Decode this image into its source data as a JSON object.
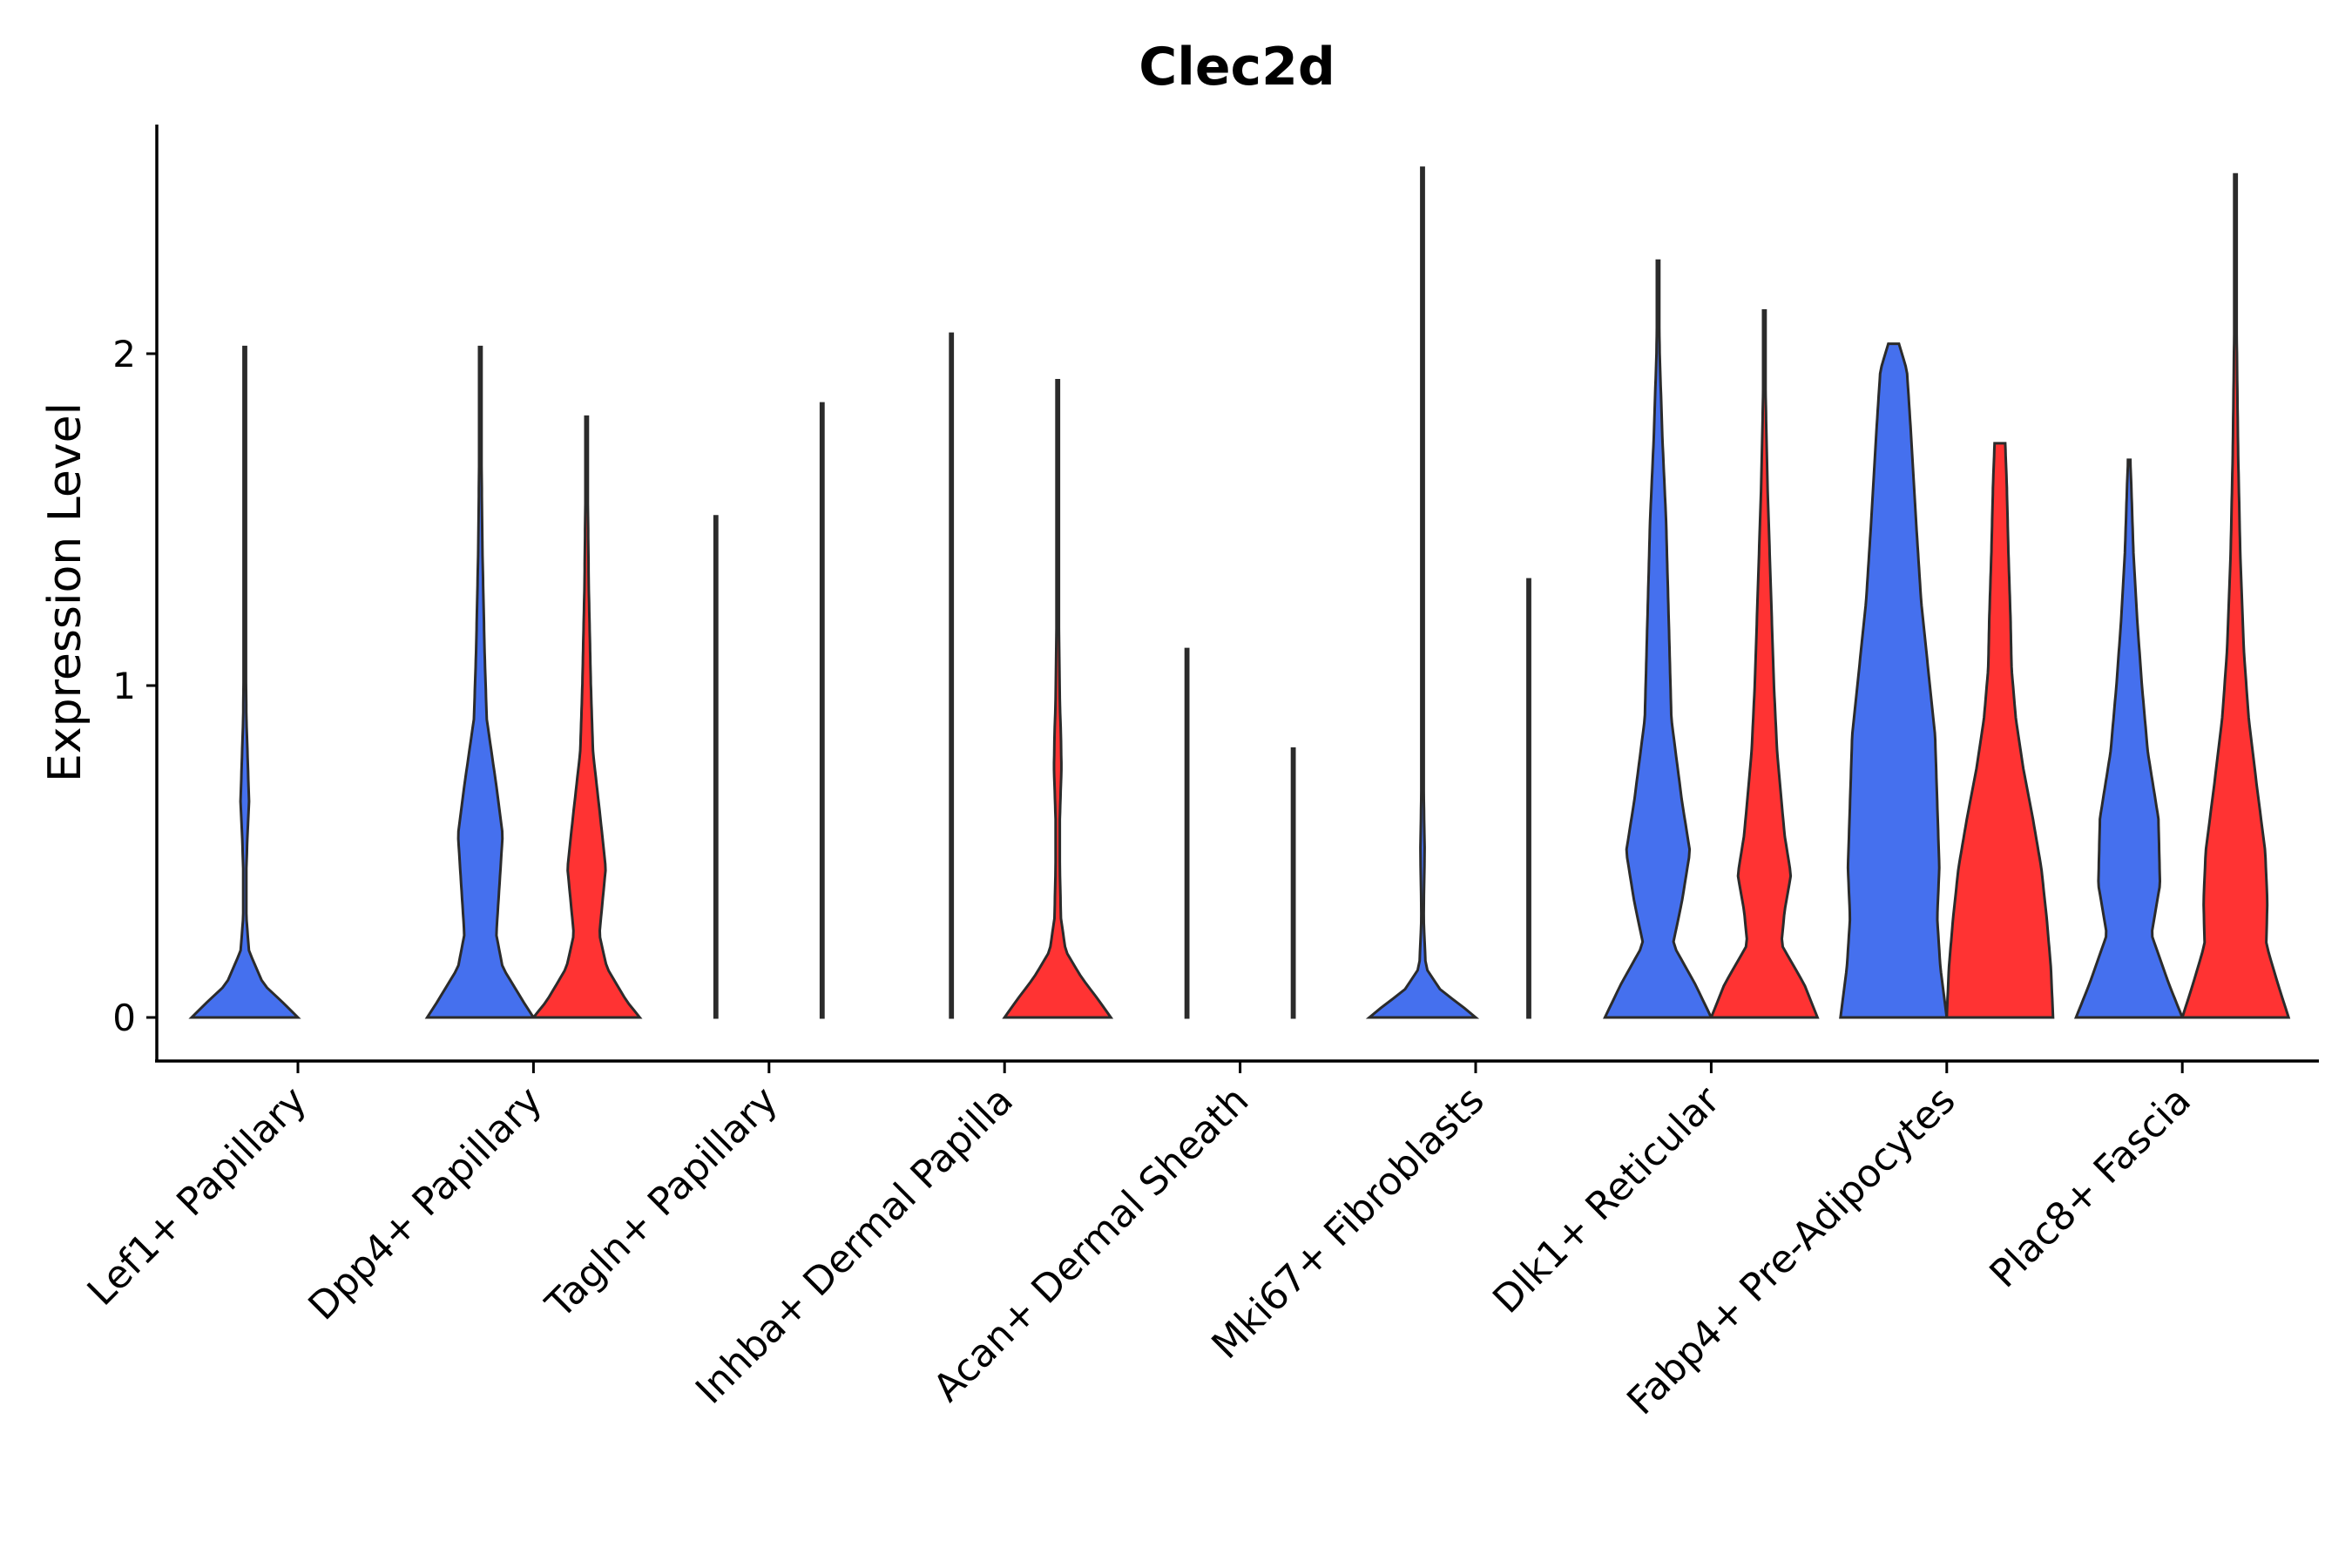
{
  "chart_data": {
    "type": "violin",
    "title": "Clec2d",
    "xlabel": "",
    "ylabel": "Expression Level",
    "ylim": [
      -0.13,
      2.7
    ],
    "yticks": [
      0,
      1,
      2
    ],
    "ytick_labels": [
      "0",
      "1",
      "2"
    ],
    "colors": {
      "blue": "#4570EE",
      "red": "#FF3333"
    },
    "categories": [
      "Lef1+ Papillary",
      "Dpp4+ Papillary",
      "Tagln+ Papillary",
      "Inhba+ Dermal Papilla",
      "Acan+ Dermal Sheath",
      "Mki67+ Fibroblasts",
      "Dlk1+ Reticular",
      "Fabp4+ Pre-Adipocytes",
      "Plac8+ Fascia"
    ],
    "series": [
      {
        "name": "blue",
        "color": "#4570EE",
        "violins": [
          {
            "max": 2.02,
            "profile": [
              [
                0,
                1.0
              ],
              [
                0.04,
                0.75
              ],
              [
                0.1,
                0.35
              ],
              [
                0.2,
                0.08
              ],
              [
                0.3,
                0.03
              ],
              [
                0.45,
                0.03
              ],
              [
                0.55,
                0.05
              ],
              [
                0.65,
                0.08
              ],
              [
                0.75,
                0.06
              ],
              [
                0.9,
                0.03
              ],
              [
                1.2,
                0.01
              ],
              [
                2.02,
                0.003
              ]
            ]
          },
          {
            "max": 2.02,
            "profile": [
              [
                0,
                1.0
              ],
              [
                0.05,
                0.8
              ],
              [
                0.15,
                0.42
              ],
              [
                0.25,
                0.3
              ],
              [
                0.4,
                0.36
              ],
              [
                0.55,
                0.42
              ],
              [
                0.7,
                0.3
              ],
              [
                0.9,
                0.12
              ],
              [
                1.1,
                0.08
              ],
              [
                1.4,
                0.04
              ],
              [
                1.7,
                0.02
              ],
              [
                2.02,
                0.003
              ]
            ]
          },
          {
            "max": 1.51,
            "profile": [
              [
                0,
                0.02
              ],
              [
                0.005,
                0.004
              ],
              [
                1.51,
                0.003
              ]
            ]
          },
          {
            "max": 2.06,
            "profile": [
              [
                0,
                0.02
              ],
              [
                0.005,
                0.004
              ],
              [
                2.06,
                0.003
              ]
            ]
          },
          {
            "max": 1.11,
            "profile": [
              [
                0,
                0.02
              ],
              [
                0.005,
                0.004
              ],
              [
                1.11,
                0.003
              ]
            ]
          },
          {
            "max": 2.56,
            "profile": [
              [
                0,
                1.0
              ],
              [
                0.04,
                0.7
              ],
              [
                0.08,
                0.35
              ],
              [
                0.15,
                0.06
              ],
              [
                0.3,
                0.02
              ],
              [
                0.5,
                0.04
              ],
              [
                0.6,
                0.03
              ],
              [
                0.8,
                0.01
              ],
              [
                1.3,
                0.005
              ],
              [
                2.56,
                0.003
              ]
            ]
          },
          {
            "max": 2.28,
            "profile": [
              [
                0,
                1.0
              ],
              [
                0.1,
                0.7
              ],
              [
                0.22,
                0.28
              ],
              [
                0.35,
                0.45
              ],
              [
                0.5,
                0.6
              ],
              [
                0.65,
                0.45
              ],
              [
                0.9,
                0.25
              ],
              [
                1.2,
                0.2
              ],
              [
                1.5,
                0.15
              ],
              [
                1.75,
                0.08
              ],
              [
                2.0,
                0.03
              ],
              [
                2.28,
                0.003
              ]
            ]
          },
          {
            "max": 2.03,
            "profile": [
              [
                0,
                1.0
              ],
              [
                0.15,
                0.88
              ],
              [
                0.3,
                0.82
              ],
              [
                0.45,
                0.86
              ],
              [
                0.6,
                0.83
              ],
              [
                0.85,
                0.78
              ],
              [
                1.05,
                0.65
              ],
              [
                1.25,
                0.52
              ],
              [
                1.5,
                0.42
              ],
              [
                1.75,
                0.33
              ],
              [
                1.95,
                0.25
              ],
              [
                2.03,
                0.1
              ]
            ]
          },
          {
            "max": 1.68,
            "profile": [
              [
                0,
                1.0
              ],
              [
                0.1,
                0.75
              ],
              [
                0.25,
                0.42
              ],
              [
                0.4,
                0.58
              ],
              [
                0.6,
                0.55
              ],
              [
                0.8,
                0.35
              ],
              [
                1.0,
                0.24
              ],
              [
                1.2,
                0.15
              ],
              [
                1.4,
                0.08
              ],
              [
                1.6,
                0.04
              ],
              [
                1.68,
                0.02
              ]
            ]
          }
        ]
      },
      {
        "name": "red",
        "color": "#FF3333",
        "violins": [
          null,
          {
            "max": 1.81,
            "profile": [
              [
                0,
                1.0
              ],
              [
                0.05,
                0.75
              ],
              [
                0.15,
                0.38
              ],
              [
                0.25,
                0.24
              ],
              [
                0.35,
                0.3
              ],
              [
                0.45,
                0.36
              ],
              [
                0.6,
                0.26
              ],
              [
                0.8,
                0.12
              ],
              [
                1.0,
                0.08
              ],
              [
                1.3,
                0.04
              ],
              [
                1.6,
                0.02
              ],
              [
                1.81,
                0.003
              ]
            ]
          },
          {
            "max": 1.85,
            "profile": [
              [
                0,
                0.02
              ],
              [
                0.005,
                0.004
              ],
              [
                1.85,
                0.003
              ]
            ]
          },
          {
            "max": 1.92,
            "profile": [
              [
                0,
                1.0
              ],
              [
                0.05,
                0.78
              ],
              [
                0.12,
                0.45
              ],
              [
                0.2,
                0.15
              ],
              [
                0.3,
                0.06
              ],
              [
                0.45,
                0.04
              ],
              [
                0.6,
                0.04
              ],
              [
                0.75,
                0.07
              ],
              [
                0.85,
                0.06
              ],
              [
                0.95,
                0.04
              ],
              [
                1.2,
                0.02
              ],
              [
                1.92,
                0.003
              ]
            ]
          },
          {
            "max": 0.81,
            "profile": [
              [
                0,
                0.02
              ],
              [
                0.005,
                0.004
              ],
              [
                0.81,
                0.003
              ]
            ]
          },
          {
            "max": 1.32,
            "profile": [
              [
                0,
                0.02
              ],
              [
                0.005,
                0.004
              ],
              [
                1.32,
                0.003
              ]
            ]
          },
          {
            "max": 2.13,
            "profile": [
              [
                0,
                1.0
              ],
              [
                0.1,
                0.75
              ],
              [
                0.22,
                0.32
              ],
              [
                0.32,
                0.38
              ],
              [
                0.43,
                0.5
              ],
              [
                0.55,
                0.38
              ],
              [
                0.8,
                0.24
              ],
              [
                1.0,
                0.18
              ],
              [
                1.3,
                0.12
              ],
              [
                1.6,
                0.06
              ],
              [
                1.9,
                0.02
              ],
              [
                2.13,
                0.003
              ]
            ]
          },
          {
            "max": 1.73,
            "profile": [
              [
                0,
                1.0
              ],
              [
                0.15,
                0.96
              ],
              [
                0.3,
                0.88
              ],
              [
                0.45,
                0.78
              ],
              [
                0.6,
                0.62
              ],
              [
                0.75,
                0.44
              ],
              [
                0.9,
                0.3
              ],
              [
                1.05,
                0.22
              ],
              [
                1.2,
                0.2
              ],
              [
                1.4,
                0.16
              ],
              [
                1.6,
                0.13
              ],
              [
                1.73,
                0.1
              ]
            ]
          },
          {
            "max": 2.54,
            "profile": [
              [
                0,
                1.0
              ],
              [
                0.1,
                0.8
              ],
              [
                0.22,
                0.58
              ],
              [
                0.35,
                0.6
              ],
              [
                0.5,
                0.56
              ],
              [
                0.7,
                0.4
              ],
              [
                0.9,
                0.25
              ],
              [
                1.1,
                0.16
              ],
              [
                1.4,
                0.09
              ],
              [
                1.7,
                0.05
              ],
              [
                2.1,
                0.02
              ],
              [
                2.54,
                0.003
              ]
            ]
          }
        ]
      }
    ]
  }
}
